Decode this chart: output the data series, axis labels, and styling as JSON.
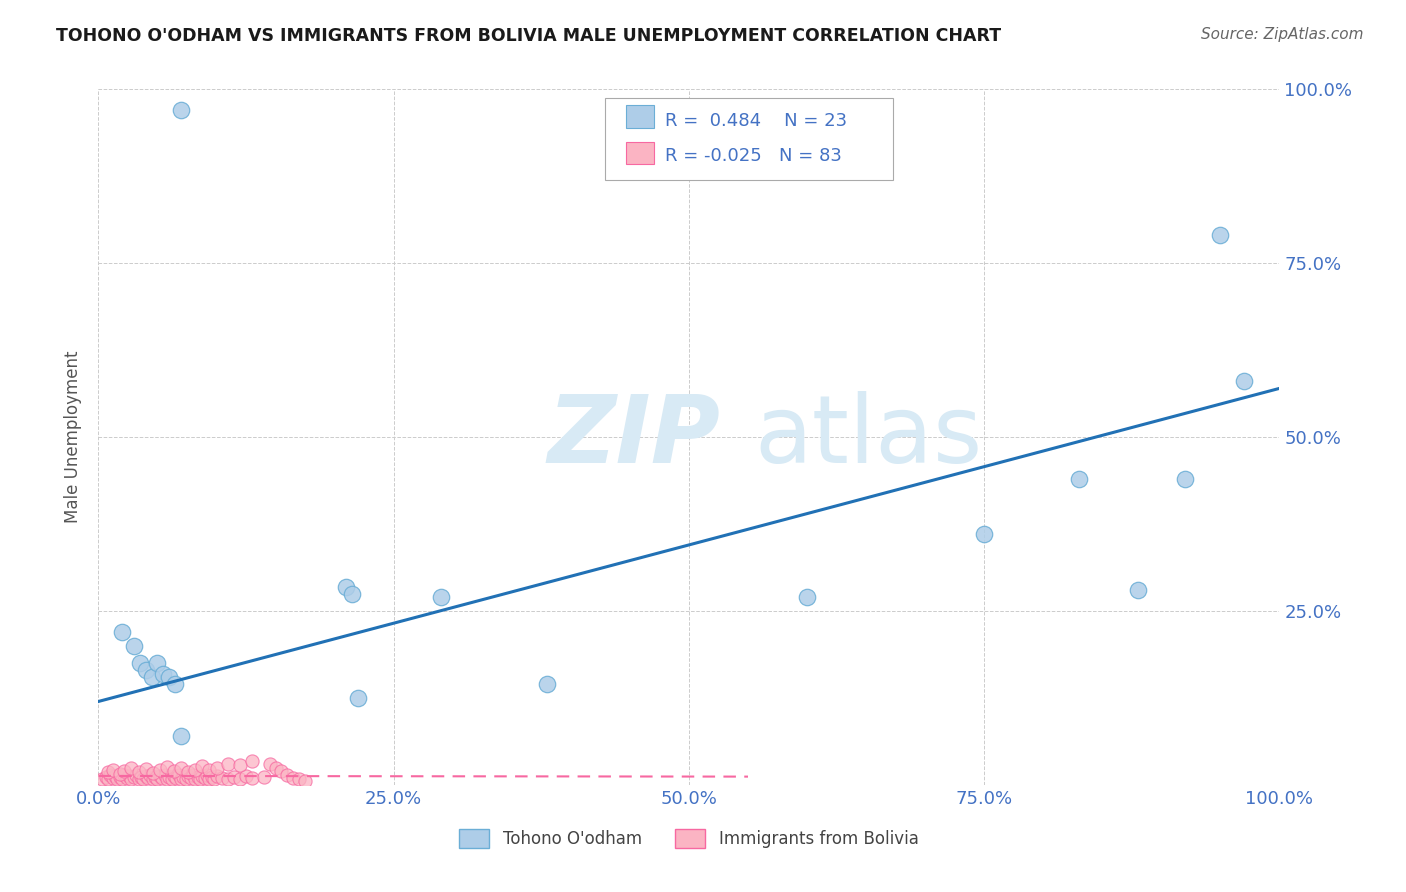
{
  "title": "TOHONO O'ODHAM VS IMMIGRANTS FROM BOLIVIA MALE UNEMPLOYMENT CORRELATION CHART",
  "source": "Source: ZipAtlas.com",
  "ylabel": "Male Unemployment",
  "xlim": [
    0,
    1.0
  ],
  "ylim": [
    0,
    1.0
  ],
  "xtick_labels": [
    "0.0%",
    "25.0%",
    "50.0%",
    "75.0%",
    "100.0%"
  ],
  "xtick_vals": [
    0.0,
    0.25,
    0.5,
    0.75,
    1.0
  ],
  "ytick_labels": [
    "25.0%",
    "50.0%",
    "75.0%",
    "100.0%"
  ],
  "ytick_vals": [
    0.25,
    0.5,
    0.75,
    1.0
  ],
  "bg_color": "#ffffff",
  "grid_color": "#cccccc",
  "blue_scatter_x": [
    0.07,
    0.02,
    0.03,
    0.035,
    0.04,
    0.045,
    0.05,
    0.055,
    0.06,
    0.065,
    0.07,
    0.21,
    0.215,
    0.22,
    0.29,
    0.38,
    0.6,
    0.75,
    0.83,
    0.88,
    0.92,
    0.95,
    0.97
  ],
  "blue_scatter_y": [
    0.97,
    0.22,
    0.2,
    0.175,
    0.165,
    0.155,
    0.175,
    0.16,
    0.155,
    0.145,
    0.07,
    0.285,
    0.275,
    0.125,
    0.27,
    0.145,
    0.27,
    0.36,
    0.44,
    0.28,
    0.44,
    0.79,
    0.58
  ],
  "pink_scatter_x": [
    0.003,
    0.006,
    0.008,
    0.01,
    0.012,
    0.014,
    0.016,
    0.018,
    0.02,
    0.022,
    0.024,
    0.026,
    0.028,
    0.03,
    0.032,
    0.034,
    0.036,
    0.038,
    0.04,
    0.042,
    0.044,
    0.046,
    0.048,
    0.05,
    0.052,
    0.054,
    0.056,
    0.058,
    0.06,
    0.062,
    0.064,
    0.066,
    0.068,
    0.07,
    0.072,
    0.074,
    0.076,
    0.078,
    0.08,
    0.082,
    0.084,
    0.086,
    0.088,
    0.09,
    0.092,
    0.094,
    0.096,
    0.098,
    0.1,
    0.105,
    0.11,
    0.115,
    0.12,
    0.125,
    0.13,
    0.14,
    0.008,
    0.012,
    0.018,
    0.022,
    0.028,
    0.034,
    0.04,
    0.046,
    0.052,
    0.058,
    0.064,
    0.07,
    0.076,
    0.082,
    0.088,
    0.094,
    0.1,
    0.11,
    0.12,
    0.13,
    0.145,
    0.15,
    0.155,
    0.16,
    0.165,
    0.17,
    0.175
  ],
  "pink_scatter_y": [
    0.008,
    0.012,
    0.009,
    0.015,
    0.01,
    0.013,
    0.008,
    0.012,
    0.009,
    0.014,
    0.01,
    0.013,
    0.008,
    0.011,
    0.014,
    0.009,
    0.012,
    0.008,
    0.013,
    0.01,
    0.014,
    0.009,
    0.012,
    0.008,
    0.013,
    0.01,
    0.014,
    0.009,
    0.012,
    0.008,
    0.013,
    0.01,
    0.014,
    0.009,
    0.012,
    0.008,
    0.013,
    0.01,
    0.014,
    0.009,
    0.012,
    0.008,
    0.013,
    0.01,
    0.014,
    0.009,
    0.012,
    0.008,
    0.013,
    0.01,
    0.009,
    0.012,
    0.008,
    0.013,
    0.01,
    0.012,
    0.018,
    0.022,
    0.016,
    0.02,
    0.025,
    0.019,
    0.023,
    0.017,
    0.021,
    0.026,
    0.02,
    0.024,
    0.018,
    0.022,
    0.027,
    0.021,
    0.025,
    0.03,
    0.028,
    0.035,
    0.03,
    0.025,
    0.02,
    0.015,
    0.01,
    0.008,
    0.005
  ],
  "blue_line_x": [
    0.0,
    1.0
  ],
  "blue_line_y_start": 0.12,
  "blue_line_y_end": 0.57,
  "pink_line_x": [
    0.0,
    0.55
  ],
  "pink_line_y_start": 0.013,
  "pink_line_y_end": 0.012,
  "blue_color": "#6baed6",
  "blue_scatter_color": "#aecde8",
  "pink_color": "#f768a1",
  "pink_scatter_color": "#fbb4c3",
  "blue_line_color": "#2171b5",
  "pink_line_color": "#f768a1",
  "legend_R_blue": "0.484",
  "legend_N_blue": "23",
  "legend_R_pink": "-0.025",
  "legend_N_pink": "83",
  "legend_label_blue": "Tohono O'odham",
  "legend_label_pink": "Immigrants from Bolivia",
  "watermark_zip": "ZIP",
  "watermark_atlas": "atlas",
  "watermark_color": "#d8eaf5"
}
